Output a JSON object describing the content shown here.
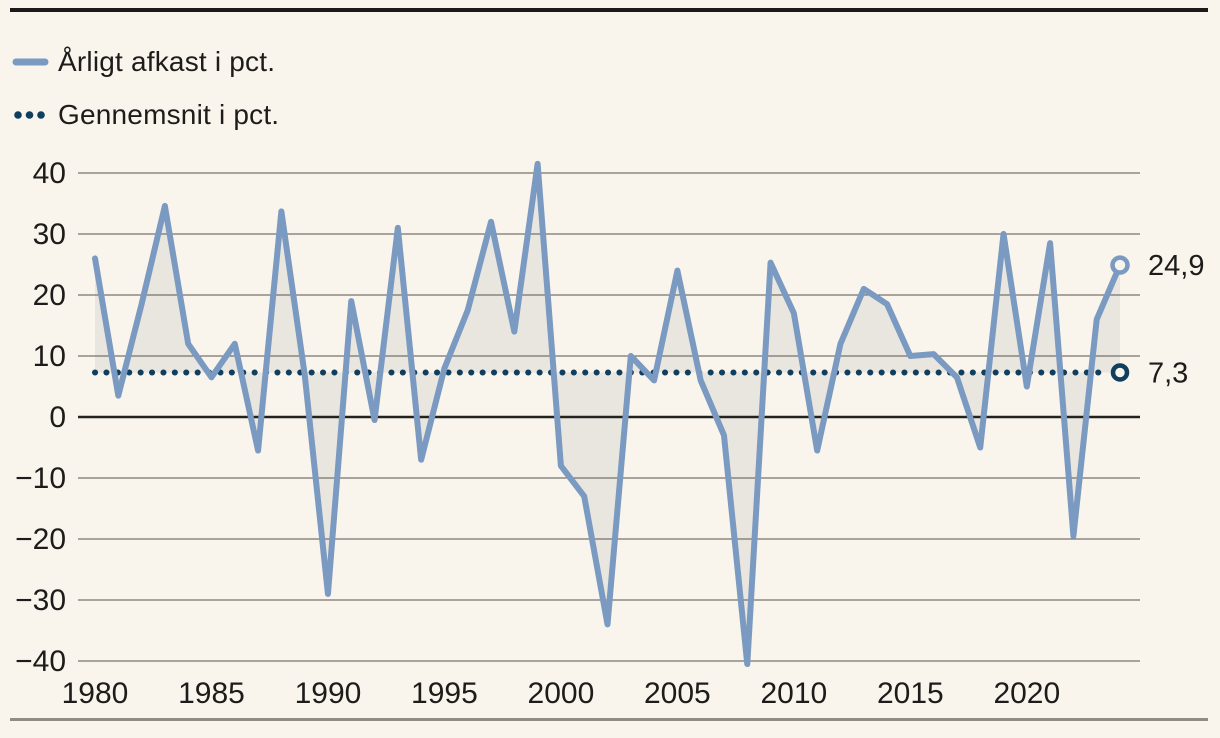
{
  "page": {
    "background": "#f9f4ec"
  },
  "chart": {
    "legend": [
      {
        "label": "Årligt afkast i pct."
      },
      {
        "label": "Gennemsnit i pct."
      }
    ],
    "end_labels": {
      "series": "24,9",
      "average": "7,3"
    }
  },
  "chart_data": {
    "type": "line",
    "title": "",
    "xlabel": "",
    "ylabel": "",
    "x": [
      1980,
      1981,
      1982,
      1983,
      1984,
      1985,
      1986,
      1987,
      1988,
      1989,
      1990,
      1991,
      1992,
      1993,
      1994,
      1995,
      1996,
      1997,
      1998,
      1999,
      2000,
      2001,
      2002,
      2003,
      2004,
      2005,
      2006,
      2007,
      2008,
      2009,
      2010,
      2011,
      2012,
      2013,
      2014,
      2015,
      2016,
      2017,
      2018,
      2019,
      2020,
      2021,
      2022,
      2023,
      2024
    ],
    "series": [
      {
        "name": "Årligt afkast i pct.",
        "color": "#7b9ac1",
        "values": [
          26,
          3.5,
          18.5,
          34.6,
          12,
          6.5,
          12,
          -5.5,
          33.7,
          7,
          -29,
          19,
          -0.5,
          31,
          -7,
          8,
          17.5,
          32,
          14,
          41.5,
          -8,
          -13,
          -34,
          10,
          6,
          24,
          6,
          -3,
          -40.5,
          25.3,
          17,
          -5.5,
          12,
          21,
          18.5,
          10,
          10.3,
          6.5,
          -5,
          30,
          5,
          28.5,
          -19.5,
          16,
          24.9
        ]
      }
    ],
    "average_line": {
      "name": "Gennemsnit i pct.",
      "value": 7.3,
      "color": "#0f3e5f",
      "style": "dotted"
    },
    "last_value_label": 24.9,
    "ylim": [
      -40,
      40
    ],
    "ytick_step": 10,
    "xticks": [
      1980,
      1985,
      1990,
      1995,
      2000,
      2005,
      2010,
      2015,
      2020
    ],
    "grid": true,
    "legend_position": "top-left",
    "fill_between": "series-and-average",
    "colors": {
      "fill": "#e9e6e0",
      "grid": "#57544e",
      "zero_line": "#23221f",
      "text": "#1d1c1a",
      "background": "#f9f4ec"
    }
  }
}
